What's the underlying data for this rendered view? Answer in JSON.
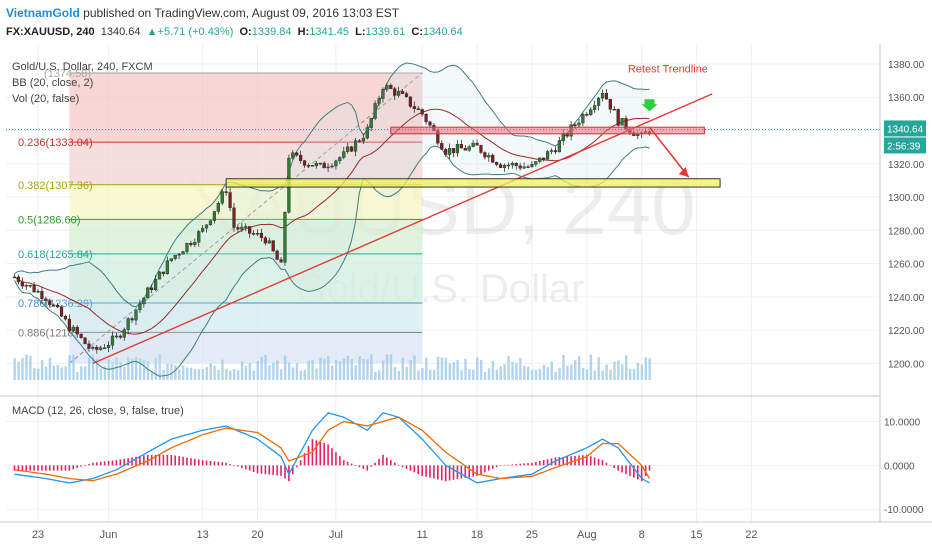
{
  "header": {
    "author": "VietnamGold",
    "published_text": "published on TradingView.com, August 09, 2016 13:03 EST",
    "symbol": "FX:XAUUSD, 240",
    "last": "1340.64",
    "change": "▲+5.71 (+0.43%)",
    "open_label": "O:",
    "open": "1339.84",
    "high_label": "H:",
    "high": "1341.45",
    "low_label": "L:",
    "low": "1339.61",
    "close_label": "C:",
    "close": "1340.64"
  },
  "legend": {
    "title": "Gold/U.S. Dollar, 240, FXCM",
    "bb": "BB (20, close, 2)",
    "vol": "Vol (20, false)",
    "macd": "MACD (12, 26, close, 9, false, true)"
  },
  "watermark": {
    "symbol": "XAUUSD, 240",
    "name": "Gold/U.S. Dollar"
  },
  "annotations": {
    "retest": "Retest Trendline",
    "price_tag": "1340.64",
    "countdown": "2:56:39"
  },
  "colors": {
    "up_candle": "#2e7d32",
    "down_candle": "#7b1f1f",
    "bb": "#3f7f7f",
    "ma": "#9a2a2a",
    "trendline": "#e53935",
    "resistance": "#f06b7c",
    "support": "#f2f25a",
    "macd": "#2196f3",
    "signal": "#ef6c00",
    "hist": "#e91e63",
    "volume": "#9ec9e8"
  },
  "chart_data": [
    {
      "type": "candlestick",
      "title": "Gold/U.S. Dollar, 240, FXCM",
      "y_axis": {
        "ticks": [
          1200,
          1220,
          1240,
          1260,
          1280,
          1300,
          1320,
          1340,
          1360,
          1380
        ],
        "range": [
          1190,
          1386
        ]
      },
      "x_axis": {
        "ticks": [
          "23",
          "Jun",
          "13",
          "20",
          "Jul",
          "11",
          "18",
          "25",
          "Aug",
          "8",
          "15",
          "22"
        ]
      },
      "price_path": [
        [
          "May 20",
          1252
        ],
        [
          "May 24",
          1240
        ],
        [
          "May 27",
          1222
        ],
        [
          "May 30",
          1207
        ],
        [
          "Jun 2",
          1215
        ],
        [
          "Jun 6",
          1243
        ],
        [
          "Jun 9",
          1263
        ],
        [
          "Jun 13",
          1280
        ],
        [
          "Jun 16",
          1305
        ],
        [
          "Jun 17",
          1282
        ],
        [
          "Jun 21",
          1275
        ],
        [
          "Jun 23",
          1258
        ],
        [
          "Jun 24",
          1325
        ],
        [
          "Jun 28",
          1318
        ],
        [
          "Jul 1",
          1325
        ],
        [
          "Jul 4",
          1340
        ],
        [
          "Jul 6",
          1367
        ],
        [
          "Jul 8",
          1362
        ],
        [
          "Jul 11",
          1350
        ],
        [
          "Jul 14",
          1328
        ],
        [
          "Jul 18",
          1330
        ],
        [
          "Jul 21",
          1320
        ],
        [
          "Jul 25",
          1318
        ],
        [
          "Jul 28",
          1330
        ],
        [
          "Aug 1",
          1352
        ],
        [
          "Aug 3",
          1364
        ],
        [
          "Aug 5",
          1346
        ],
        [
          "Aug 8",
          1336
        ],
        [
          "Aug 9",
          1340.64
        ]
      ],
      "fibonacci": [
        {
          "level": "0.236",
          "label": "0.236(1333.04)",
          "value": 1333.04
        },
        {
          "level": "0.382",
          "label": "0.382(1307.36)",
          "value": 1307.36
        },
        {
          "level": "0.5",
          "label": "0.5(1286.60)",
          "value": 1286.6
        },
        {
          "level": "0.618",
          "label": "0.618(1265.84)",
          "value": 1265.84
        },
        {
          "level": "0.786",
          "label": "0.786(1236.29)",
          "value": 1236.29
        },
        {
          "level": "0.886",
          "label": "0.886(1218.",
          "value": 1218.6
        }
      ],
      "fib_top_label": "(1374.58)",
      "fib_top": 1374.58,
      "fib_bottom": 1200,
      "trendline": [
        [
          "May 30",
          1200
        ],
        [
          "Aug 17",
          1362
        ]
      ],
      "resistance_zone": [
        1338,
        1342
      ],
      "support_zone": [
        1306,
        1311
      ],
      "retest_target": 1312,
      "last_price": 1340.64
    },
    {
      "type": "line",
      "title": "MACD (12, 26, close, 9, false, true)",
      "y_axis": {
        "ticks": [
          10.0,
          0.0,
          -10.0
        ],
        "tick_labels": [
          "10.0000",
          "0.0000",
          "-10.0000"
        ],
        "range": [
          -12,
          14
        ]
      },
      "macd": [
        [
          "May 20",
          -2
        ],
        [
          "May 24",
          -3
        ],
        [
          "May 27",
          -4
        ],
        [
          "May 30",
          -3
        ],
        [
          "Jun 2",
          -1
        ],
        [
          "Jun 6",
          3
        ],
        [
          "Jun 9",
          6
        ],
        [
          "Jun 13",
          8
        ],
        [
          "Jun 16",
          9
        ],
        [
          "Jun 20",
          6
        ],
        [
          "Jun 23",
          2
        ],
        [
          "Jun 24",
          -2
        ],
        [
          "Jun 27",
          8
        ],
        [
          "Jun 29",
          12
        ],
        [
          "Jul 1",
          11
        ],
        [
          "Jul 4",
          8
        ],
        [
          "Jul 6",
          12
        ],
        [
          "Jul 8",
          11
        ],
        [
          "Jul 11",
          6
        ],
        [
          "Jul 14",
          0
        ],
        [
          "Jul 18",
          -4
        ],
        [
          "Jul 21",
          -3
        ],
        [
          "Jul 25",
          -2
        ],
        [
          "Jul 28",
          1
        ],
        [
          "Aug 1",
          4
        ],
        [
          "Aug 3",
          6
        ],
        [
          "Aug 5",
          4
        ],
        [
          "Aug 8",
          -3
        ],
        [
          "Aug 9",
          -4
        ]
      ],
      "signal": [
        [
          "May 20",
          -1
        ],
        [
          "May 24",
          -2
        ],
        [
          "May 27",
          -3
        ],
        [
          "May 30",
          -3.5
        ],
        [
          "Jun 2",
          -2
        ],
        [
          "Jun 6",
          1
        ],
        [
          "Jun 9",
          4
        ],
        [
          "Jun 13",
          7
        ],
        [
          "Jun 16",
          8.5
        ],
        [
          "Jun 20",
          7.5
        ],
        [
          "Jun 23",
          4
        ],
        [
          "Jun 24",
          1
        ],
        [
          "Jun 27",
          3
        ],
        [
          "Jun 29",
          8
        ],
        [
          "Jul 1",
          10
        ],
        [
          "Jul 4",
          9
        ],
        [
          "Jul 6",
          10
        ],
        [
          "Jul 8",
          11
        ],
        [
          "Jul 11",
          8
        ],
        [
          "Jul 14",
          3
        ],
        [
          "Jul 18",
          -2
        ],
        [
          "Jul 21",
          -3
        ],
        [
          "Jul 25",
          -2.5
        ],
        [
          "Jul 28",
          -0.5
        ],
        [
          "Aug 1",
          2
        ],
        [
          "Aug 3",
          5
        ],
        [
          "Aug 5",
          5
        ],
        [
          "Aug 8",
          0
        ],
        [
          "Aug 9",
          -3
        ]
      ]
    }
  ]
}
